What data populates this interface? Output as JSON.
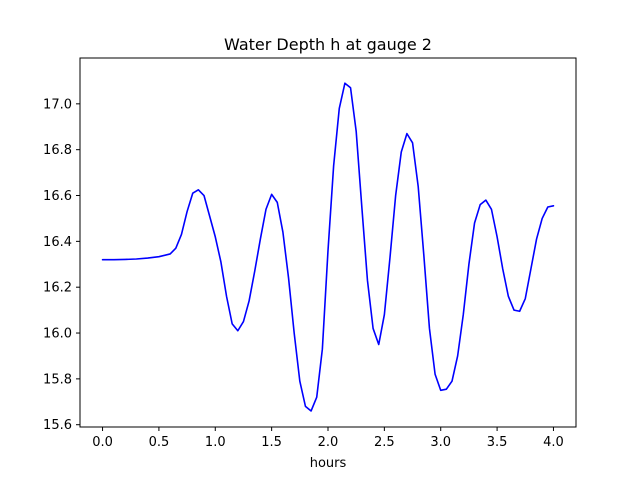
{
  "chart_data": {
    "type": "line",
    "title": "Water Depth h at gauge 2",
    "xlabel": "hours",
    "ylabel": "",
    "xlim": [
      -0.2,
      4.2
    ],
    "ylim": [
      15.59,
      17.2
    ],
    "xticks": [
      0.0,
      0.5,
      1.0,
      1.5,
      2.0,
      2.5,
      3.0,
      3.5,
      4.0
    ],
    "xtick_labels": [
      "0.0",
      "0.5",
      "1.0",
      "1.5",
      "2.0",
      "2.5",
      "3.0",
      "3.5",
      "4.0"
    ],
    "yticks": [
      15.6,
      15.8,
      16.0,
      16.2,
      16.4,
      16.6,
      16.8,
      17.0
    ],
    "ytick_labels": [
      "15.6",
      "15.8",
      "16.0",
      "16.2",
      "16.4",
      "16.6",
      "16.8",
      "17.0"
    ],
    "grid": false,
    "series": [
      {
        "color": "#0000ff",
        "x": [
          0.0,
          0.1,
          0.2,
          0.3,
          0.4,
          0.5,
          0.6,
          0.65,
          0.7,
          0.75,
          0.8,
          0.85,
          0.9,
          0.95,
          1.0,
          1.05,
          1.1,
          1.15,
          1.2,
          1.25,
          1.3,
          1.35,
          1.4,
          1.45,
          1.5,
          1.55,
          1.6,
          1.65,
          1.7,
          1.75,
          1.8,
          1.85,
          1.9,
          1.95,
          2.0,
          2.05,
          2.1,
          2.15,
          2.2,
          2.25,
          2.3,
          2.35,
          2.4,
          2.45,
          2.5,
          2.55,
          2.6,
          2.65,
          2.7,
          2.75,
          2.8,
          2.85,
          2.9,
          2.95,
          3.0,
          3.05,
          3.1,
          3.15,
          3.2,
          3.25,
          3.3,
          3.35,
          3.4,
          3.45,
          3.5,
          3.55,
          3.6,
          3.65,
          3.7,
          3.75,
          3.8,
          3.85,
          3.9,
          3.95,
          4.0
        ],
        "y": [
          16.32,
          16.32,
          16.321,
          16.323,
          16.327,
          16.333,
          16.345,
          16.37,
          16.43,
          16.53,
          16.61,
          16.625,
          16.6,
          16.51,
          16.42,
          16.31,
          16.16,
          16.04,
          16.01,
          16.05,
          16.14,
          16.27,
          16.41,
          16.54,
          16.605,
          16.57,
          16.44,
          16.24,
          16.0,
          15.79,
          15.68,
          15.66,
          15.72,
          15.93,
          16.36,
          16.73,
          16.98,
          17.09,
          17.07,
          16.88,
          16.55,
          16.23,
          16.02,
          15.95,
          16.08,
          16.33,
          16.6,
          16.79,
          16.87,
          16.83,
          16.64,
          16.34,
          16.02,
          15.82,
          15.75,
          15.755,
          15.79,
          15.9,
          16.08,
          16.3,
          16.48,
          16.56,
          16.58,
          16.54,
          16.42,
          16.28,
          16.16,
          16.1,
          16.095,
          16.15,
          16.28,
          16.41,
          16.5,
          16.55,
          16.555
        ]
      }
    ]
  }
}
